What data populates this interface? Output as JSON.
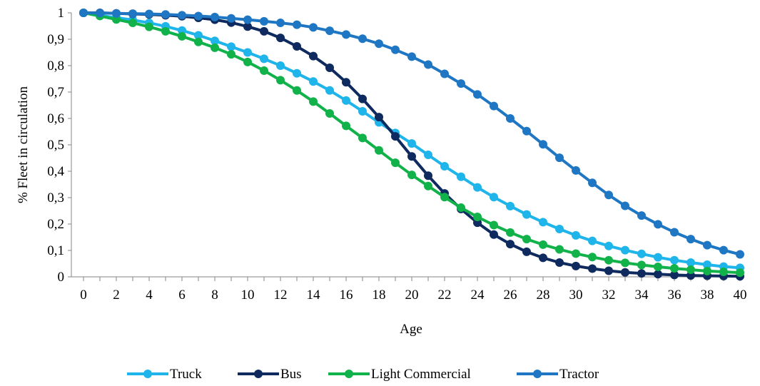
{
  "chart_data": {
    "type": "line",
    "title": "",
    "xlabel": "Age",
    "ylabel": "% Fleet in circulation",
    "x": [
      0,
      1,
      2,
      3,
      4,
      5,
      6,
      7,
      8,
      9,
      10,
      11,
      12,
      13,
      14,
      15,
      16,
      17,
      18,
      19,
      20,
      21,
      22,
      23,
      24,
      25,
      26,
      27,
      28,
      29,
      30,
      31,
      32,
      33,
      34,
      35,
      36,
      37,
      38,
      39,
      40
    ],
    "xlim": [
      0,
      40
    ],
    "ylim": [
      0,
      1
    ],
    "x_tick_labels": [
      "0",
      "2",
      "4",
      "6",
      "8",
      "10",
      "12",
      "14",
      "16",
      "18",
      "20",
      "22",
      "24",
      "26",
      "28",
      "30",
      "32",
      "34",
      "36",
      "38",
      "40"
    ],
    "y_tick_labels": [
      "0",
      "0,1",
      "0,2",
      "0,3",
      "0,4",
      "0,5",
      "0,6",
      "0,7",
      "0,8",
      "0,9",
      "1"
    ],
    "grid": false,
    "legend_position": "bottom",
    "series": [
      {
        "name": "Truck",
        "color": "#1FB4EA",
        "values": [
          1.0,
          0.99,
          0.982,
          0.973,
          0.962,
          0.949,
          0.933,
          0.915,
          0.894,
          0.872,
          0.85,
          0.826,
          0.8,
          0.771,
          0.74,
          0.706,
          0.668,
          0.627,
          0.585,
          0.545,
          0.505,
          0.462,
          0.419,
          0.379,
          0.339,
          0.302,
          0.268,
          0.236,
          0.207,
          0.181,
          0.157,
          0.136,
          0.117,
          0.101,
          0.087,
          0.074,
          0.063,
          0.054,
          0.046,
          0.039,
          0.034
        ]
      },
      {
        "name": "Bus",
        "color": "#0E2A5E",
        "values": [
          1.0,
          1.0,
          0.998,
          0.996,
          0.994,
          0.991,
          0.987,
          0.981,
          0.974,
          0.963,
          0.948,
          0.93,
          0.905,
          0.873,
          0.836,
          0.792,
          0.737,
          0.674,
          0.605,
          0.532,
          0.456,
          0.383,
          0.316,
          0.257,
          0.205,
          0.16,
          0.124,
          0.095,
          0.072,
          0.054,
          0.041,
          0.031,
          0.023,
          0.017,
          0.013,
          0.01,
          0.007,
          0.005,
          0.004,
          0.003,
          0.002
        ]
      },
      {
        "name": "Light Commercial",
        "color": "#12B24B",
        "values": [
          1.0,
          0.988,
          0.975,
          0.962,
          0.947,
          0.93,
          0.911,
          0.89,
          0.868,
          0.843,
          0.814,
          0.781,
          0.745,
          0.706,
          0.664,
          0.619,
          0.572,
          0.526,
          0.479,
          0.432,
          0.386,
          0.344,
          0.302,
          0.262,
          0.227,
          0.196,
          0.168,
          0.143,
          0.122,
          0.104,
          0.088,
          0.075,
          0.063,
          0.053,
          0.045,
          0.038,
          0.032,
          0.027,
          0.022,
          0.019,
          0.016
        ]
      },
      {
        "name": "Tractor",
        "color": "#1F77C4",
        "values": [
          1.0,
          0.999,
          0.998,
          0.997,
          0.996,
          0.994,
          0.991,
          0.988,
          0.984,
          0.979,
          0.974,
          0.968,
          0.962,
          0.955,
          0.945,
          0.932,
          0.918,
          0.902,
          0.883,
          0.86,
          0.834,
          0.804,
          0.769,
          0.732,
          0.691,
          0.647,
          0.6,
          0.552,
          0.502,
          0.451,
          0.403,
          0.356,
          0.31,
          0.269,
          0.232,
          0.199,
          0.169,
          0.143,
          0.12,
          0.101,
          0.085
        ]
      }
    ]
  }
}
